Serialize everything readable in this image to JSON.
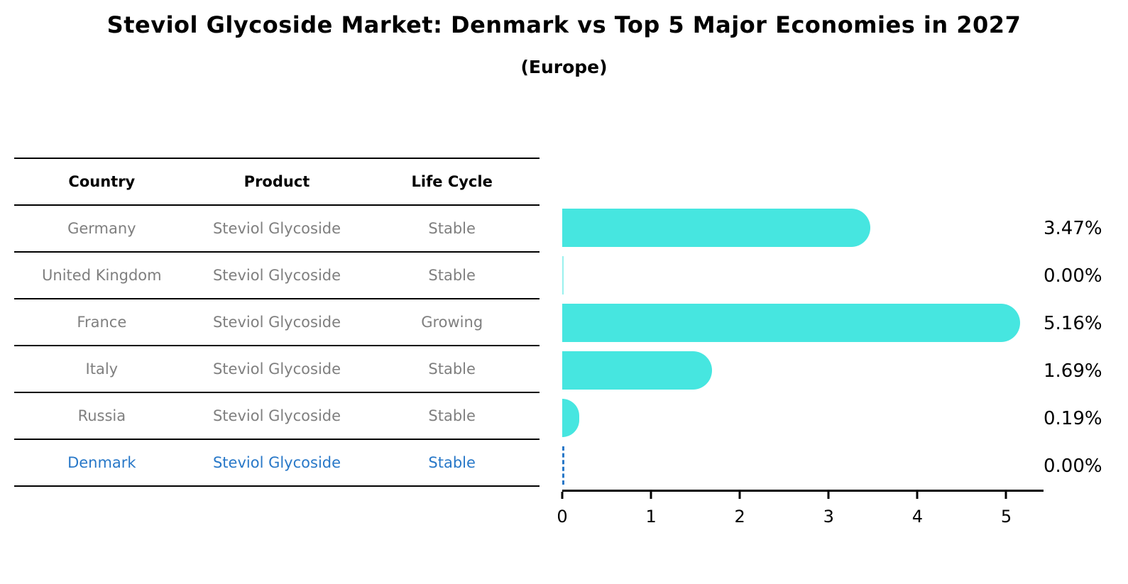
{
  "title": "Steviol Glycoside Market: Denmark vs Top 5 Major Economies in 2027",
  "subtitle": "(Europe)",
  "table": {
    "headers": [
      "Country",
      "Product",
      "Life Cycle"
    ],
    "rows": [
      {
        "country": "Germany",
        "product": "Steviol Glycoside",
        "life_cycle": "Stable",
        "highlighted": false
      },
      {
        "country": "United Kingdom",
        "product": "Steviol Glycoside",
        "life_cycle": "Stable",
        "highlighted": false
      },
      {
        "country": "France",
        "product": "Steviol Glycoside",
        "life_cycle": "Growing",
        "highlighted": false
      },
      {
        "country": "Italy",
        "product": "Steviol Glycoside",
        "life_cycle": "Stable",
        "highlighted": false
      },
      {
        "country": "Russia",
        "product": "Steviol Glycoside",
        "life_cycle": "Stable",
        "highlighted": true
      }
    ]
  },
  "chart_data": {
    "type": "bar",
    "orientation": "horizontal",
    "title": "Steviol Glycoside Market: Denmark vs Top 5 Major Economies in 2027 (Europe)",
    "categories": [
      "Germany",
      "United Kingdom",
      "France",
      "Italy",
      "Russia",
      "Denmark"
    ],
    "values": [
      3.47,
      0.0,
      5.16,
      1.69,
      0.19,
      0.0
    ],
    "value_labels": [
      "3.47%",
      "0.00%",
      "5.16%",
      "1.69%",
      "0.19%",
      "0.00%"
    ],
    "xticks": [
      "0",
      "1",
      "2",
      "3",
      "4",
      "5"
    ],
    "xtick_values": [
      0,
      1,
      2,
      3,
      4,
      5
    ],
    "xlim": [
      0,
      5.42
    ],
    "xlabel": "",
    "ylabel": "",
    "grid": false,
    "legend": false,
    "bar_color": "#46e6e0",
    "highlight_country": "Denmark",
    "highlight_color": "#2878c8"
  },
  "denmark_row": {
    "country": "Denmark",
    "product": "Steviol Glycoside",
    "life_cycle": "Stable"
  }
}
